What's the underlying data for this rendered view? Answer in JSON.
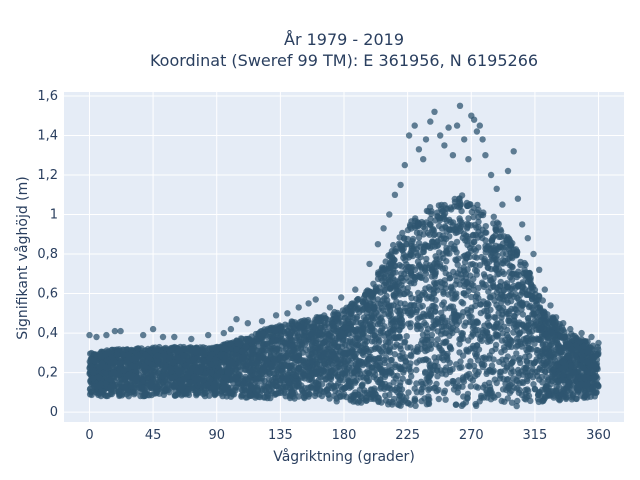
{
  "chart_data": {
    "type": "scatter",
    "title": "År 1979 - 2019",
    "subtitle": "Koordinat (Sweref 99 TM): E 361956, N 6195266",
    "xlabel": "Vågriktning (grader)",
    "ylabel": "Signifikant våghöjd (m)",
    "xlim": [
      -18,
      378
    ],
    "ylim": [
      -0.05,
      1.62
    ],
    "x_ticks": [
      0,
      45,
      90,
      135,
      180,
      225,
      270,
      315,
      360
    ],
    "x_tick_labels": [
      "0",
      "45",
      "90",
      "135",
      "180",
      "225",
      "270",
      "315",
      "360"
    ],
    "y_ticks": [
      0,
      0.2,
      0.4,
      0.6,
      0.8,
      1.0,
      1.2,
      1.4,
      1.6
    ],
    "y_tick_labels": [
      "0",
      "0,2",
      "0,4",
      "0,6",
      "0,8",
      "1",
      "1,2",
      "1,4",
      "1,6"
    ],
    "grid": true,
    "marker_color": "#2f5670",
    "plot_bg": "#e5ecf6",
    "grid_color": "#ffffff",
    "series": [
      {
        "points_description": "dense cloud",
        "envelope": {
          "x": [
            0,
            20,
            45,
            70,
            90,
            110,
            135,
            160,
            180,
            195,
            205,
            215,
            225,
            235,
            245,
            255,
            265,
            275,
            285,
            295,
            305,
            315,
            325,
            340,
            360
          ],
          "y_min": [
            0.08,
            0.08,
            0.08,
            0.08,
            0.08,
            0.07,
            0.07,
            0.06,
            0.05,
            0.04,
            0.04,
            0.03,
            0.03,
            0.03,
            0.03,
            0.03,
            0.03,
            0.03,
            0.03,
            0.03,
            0.03,
            0.04,
            0.05,
            0.06,
            0.08
          ],
          "y_max": [
            0.3,
            0.32,
            0.33,
            0.33,
            0.33,
            0.38,
            0.45,
            0.48,
            0.52,
            0.6,
            0.72,
            0.85,
            0.95,
            1.02,
            1.05,
            1.08,
            1.1,
            1.05,
            1.0,
            0.9,
            0.8,
            0.65,
            0.5,
            0.4,
            0.33
          ]
        },
        "outliers": [
          [
            0,
            0.39
          ],
          [
            5,
            0.38
          ],
          [
            12,
            0.39
          ],
          [
            18,
            0.41
          ],
          [
            22,
            0.41
          ],
          [
            38,
            0.39
          ],
          [
            45,
            0.42
          ],
          [
            52,
            0.38
          ],
          [
            60,
            0.38
          ],
          [
            72,
            0.37
          ],
          [
            84,
            0.39
          ],
          [
            95,
            0.4
          ],
          [
            100,
            0.42
          ],
          [
            104,
            0.47
          ],
          [
            112,
            0.45
          ],
          [
            122,
            0.46
          ],
          [
            132,
            0.49
          ],
          [
            140,
            0.5
          ],
          [
            148,
            0.53
          ],
          [
            155,
            0.55
          ],
          [
            160,
            0.57
          ],
          [
            170,
            0.53
          ],
          [
            178,
            0.58
          ],
          [
            188,
            0.62
          ],
          [
            198,
            0.75
          ],
          [
            204,
            0.85
          ],
          [
            208,
            0.93
          ],
          [
            212,
            1.0
          ],
          [
            216,
            1.1
          ],
          [
            220,
            1.15
          ],
          [
            223,
            1.25
          ],
          [
            226,
            1.4
          ],
          [
            230,
            1.45
          ],
          [
            233,
            1.33
          ],
          [
            236,
            1.28
          ],
          [
            238,
            1.38
          ],
          [
            241,
            1.47
          ],
          [
            244,
            1.52
          ],
          [
            248,
            1.4
          ],
          [
            251,
            1.35
          ],
          [
            254,
            1.44
          ],
          [
            257,
            1.3
          ],
          [
            260,
            1.45
          ],
          [
            262,
            1.55
          ],
          [
            265,
            1.38
          ],
          [
            268,
            1.28
          ],
          [
            270,
            1.5
          ],
          [
            272,
            1.48
          ],
          [
            274,
            1.42
          ],
          [
            276,
            1.45
          ],
          [
            278,
            1.38
          ],
          [
            280,
            1.3
          ],
          [
            284,
            1.2
          ],
          [
            288,
            1.13
          ],
          [
            292,
            1.05
          ],
          [
            296,
            1.22
          ],
          [
            300,
            1.32
          ],
          [
            303,
            1.08
          ],
          [
            306,
            0.95
          ],
          [
            310,
            0.88
          ],
          [
            314,
            0.8
          ],
          [
            318,
            0.72
          ],
          [
            322,
            0.62
          ],
          [
            326,
            0.54
          ],
          [
            330,
            0.48
          ],
          [
            335,
            0.45
          ],
          [
            340,
            0.42
          ],
          [
            348,
            0.4
          ],
          [
            355,
            0.38
          ],
          [
            360,
            0.35
          ]
        ]
      }
    ]
  }
}
